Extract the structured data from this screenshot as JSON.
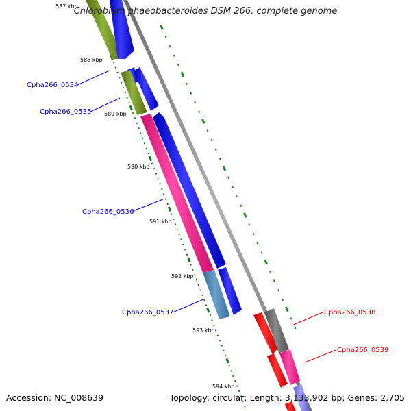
{
  "title": "Chlorobium phaeobacteroides DSM 266, complete genome",
  "footer": {
    "accession": "Accession: NC_008639",
    "topology": "Topology: circular; Length: 3,133,902 bp; Genes: 2,705"
  },
  "colors": {
    "background": "#ffffff",
    "backbone": "#8a8a8a",
    "tick_major": "#1a7a1a",
    "tick_minor": "#1f8a1f",
    "label_forward": "#0000c8",
    "label_reverse": "#e00000",
    "kbp_text": "#000000"
  },
  "kbp_labels": [
    "587 kbp",
    "588 kbp",
    "589 kbp",
    "590 kbp",
    "591 kbp",
    "592 kbp",
    "593 kbp",
    "594 kbp"
  ],
  "gene_labels": [
    {
      "text": "Cpha266_0534",
      "strand": "forward"
    },
    {
      "text": "Cpha266_0535",
      "strand": "forward"
    },
    {
      "text": "Cpha266_0536",
      "strand": "forward"
    },
    {
      "text": "Cpha266_0537",
      "strand": "forward"
    },
    {
      "text": "Cpha266_0538",
      "strand": "reverse"
    },
    {
      "text": "Cpha266_0539",
      "strand": "reverse"
    }
  ],
  "features": [
    {
      "name": "olive-gene-top",
      "color": "#6b8e23"
    },
    {
      "name": "blue-cds-top",
      "color": "#1414e6"
    },
    {
      "name": "blue-cds-0534",
      "color": "#1414e6"
    },
    {
      "name": "olive-gene-0535",
      "color": "#6b8e23"
    },
    {
      "name": "blue-cds-0535",
      "color": "#1414e6"
    },
    {
      "name": "pink-gene-0536",
      "color": "#f0168c"
    },
    {
      "name": "blue-cds-0536",
      "color": "#1414e6"
    },
    {
      "name": "steelblue-gene-0537",
      "color": "#4682b4"
    },
    {
      "name": "blue-cds-0537",
      "color": "#1414e6"
    },
    {
      "name": "red-cds-0538",
      "color": "#f00000"
    },
    {
      "name": "gray-gene-0538",
      "color": "#6e6e6e"
    },
    {
      "name": "red-cds-0539",
      "color": "#f00000"
    },
    {
      "name": "pink-gene-0539",
      "color": "#f0168c"
    },
    {
      "name": "red-cds-bottom",
      "color": "#f00000"
    },
    {
      "name": "purple-gene-bottom",
      "color": "#8080e8"
    }
  ]
}
